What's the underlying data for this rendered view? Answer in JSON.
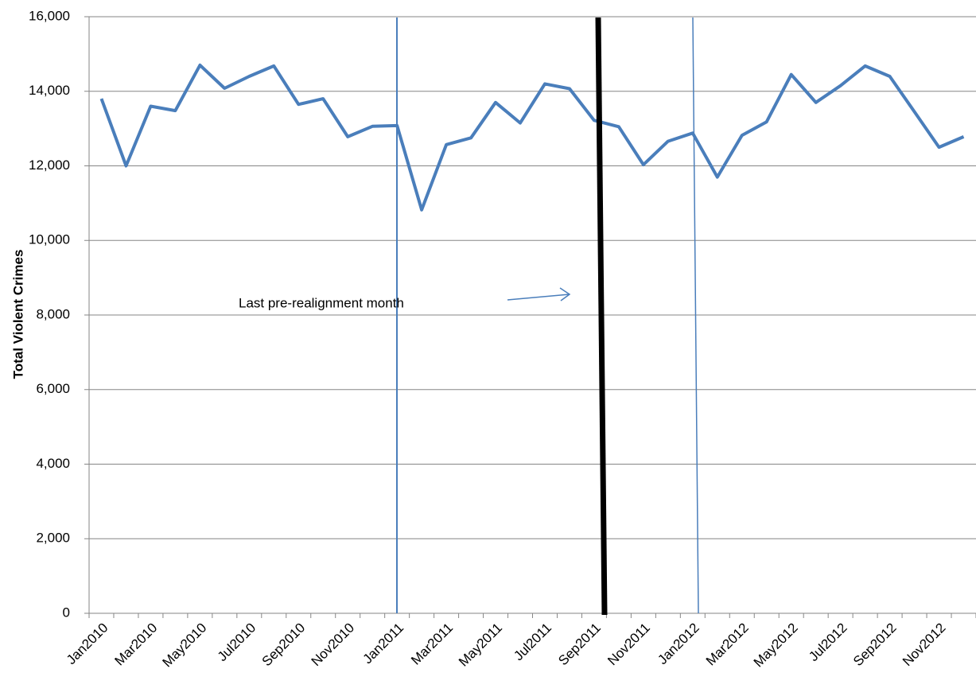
{
  "chart_data": {
    "type": "line",
    "y_axis_label": "Total Violent Crimes",
    "annotation": "Last pre-realignment month",
    "categories": [
      "Jan2010",
      null,
      "Mar2010",
      null,
      "May2010",
      null,
      "Jul2010",
      null,
      "Sep2010",
      null,
      "Nov2010",
      null,
      "Jan2011",
      null,
      "Mar2011",
      null,
      "May2011",
      null,
      "Jul2011",
      null,
      "Sep2011",
      null,
      "Nov2011",
      null,
      "Jan2012",
      null,
      "Mar2012",
      null,
      "May2012",
      null,
      "Jul2012",
      null,
      "Sep2012",
      null,
      "Nov2012",
      null
    ],
    "series": [
      {
        "name": "Total Violent Crimes",
        "color": "#4a7ebb",
        "values": [
          13800,
          12000,
          13600,
          13480,
          14700,
          14080,
          14400,
          14680,
          13650,
          13800,
          12780,
          13060,
          13080,
          10820,
          12570,
          12750,
          13700,
          13150,
          14200,
          14070,
          13220,
          13050,
          12030,
          12660,
          12880,
          11700,
          12820,
          13180,
          14450,
          13700,
          14150,
          14680,
          14400,
          13450,
          12500,
          12780
        ]
      }
    ],
    "ylim": [
      0,
      16000
    ],
    "yticks": [
      0,
      {
        "value": 2000,
        "label": "2,000"
      },
      {
        "value": 4000,
        "label": "4,000"
      },
      {
        "value": 6000,
        "label": "6,000"
      },
      {
        "value": 8000,
        "label": "8,000"
      },
      {
        "value": 10000,
        "label": "10,000"
      },
      {
        "value": 12000,
        "label": "12,000"
      },
      {
        "value": 14000,
        "label": "14,000"
      },
      {
        "value": 16000,
        "label": "16,000"
      }
    ],
    "grid": true
  }
}
